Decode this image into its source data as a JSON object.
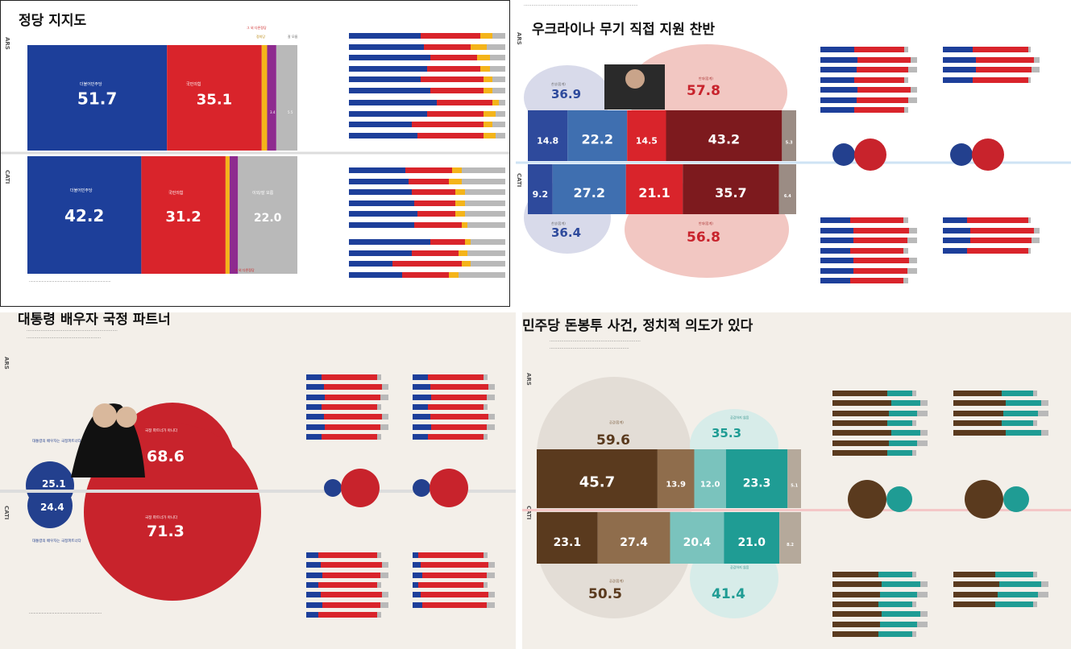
{
  "panels": {
    "p1": {
      "title": "정당 지지도"
    },
    "p2": {
      "title": "우크라이나 무기 직접 지원 찬반"
    },
    "p3": {
      "title": "대통령 배우자 국정 파트너"
    },
    "p4": {
      "title": "민주당 돈봉투 사건, 정치적 의도가 있다"
    }
  },
  "side_labels": {
    "ars": "ARS",
    "cati": "CATI"
  },
  "chart_data": [
    {
      "type": "bar",
      "title": "정당 지지도",
      "stacked": true,
      "categories": [
        "ARS",
        "CATI"
      ],
      "series": [
        {
          "name": "더불어민주당",
          "values": [
            51.7,
            42.2
          ],
          "color": "#1d3f9a"
        },
        {
          "name": "국민의힘",
          "values": [
            35.1,
            31.2
          ],
          "color": "#d9242b"
        }
      ],
      "ars_segments": [
        51.7,
        35.1,
        2.0,
        3.4,
        7.8
      ],
      "cati_segments": [
        42.2,
        31.2,
        1.5,
        3.1,
        22.0
      ],
      "segment_colors": [
        "#1d3f9a",
        "#d9242b",
        "#f4b41a",
        "#8e2a8f",
        "#b9b9b9"
      ],
      "small_labels": {
        "p1a": "그 외 다른정당",
        "p1b": "정의당",
        "p1c": "그 외 다른정당",
        "p1d": "잘 모름"
      },
      "tiny_values": {
        "v1": "3.4",
        "v2": "5.5"
      }
    },
    {
      "type": "bar",
      "title": "우크라이나 무기 직접 지원 찬반",
      "ars": {
        "agree_total": 36.9,
        "oppose_total": 57.8,
        "segments": [
          14.8,
          22.2,
          14.5,
          43.2,
          5.3
        ]
      },
      "cati": {
        "agree_total": 36.4,
        "oppose_total": 56.8,
        "segments": [
          9.2,
          27.2,
          21.1,
          35.7,
          6.4
        ]
      },
      "colors": [
        "#2e4a9c",
        "#3f6fb0",
        "#d9242b",
        "#7d1a1e",
        "#9b8c84"
      ]
    },
    {
      "type": "pie",
      "title": "대통령 배우자 국정 파트너",
      "ars": {
        "partner": 25.1,
        "not_partner": 68.6
      },
      "cati": {
        "partner": 24.4,
        "not_partner": 71.3
      },
      "colors": [
        "#23408e",
        "#c8232c"
      ]
    },
    {
      "type": "bar",
      "title": "민주당 돈봉투 사건, 정치적 의도가 있다",
      "ars": {
        "yes_total": 59.6,
        "no_total": 35.3,
        "segments": [
          45.7,
          13.9,
          12.0,
          23.3,
          5.1
        ]
      },
      "cati": {
        "yes_total": 50.5,
        "no_total": 41.4,
        "segments": [
          23.1,
          27.4,
          20.4,
          21.0,
          8.2
        ]
      },
      "colors": [
        "#5a3a1e",
        "#8f6d4c",
        "#7ac3bd",
        "#1f9c94",
        "#b5a99b"
      ]
    }
  ]
}
